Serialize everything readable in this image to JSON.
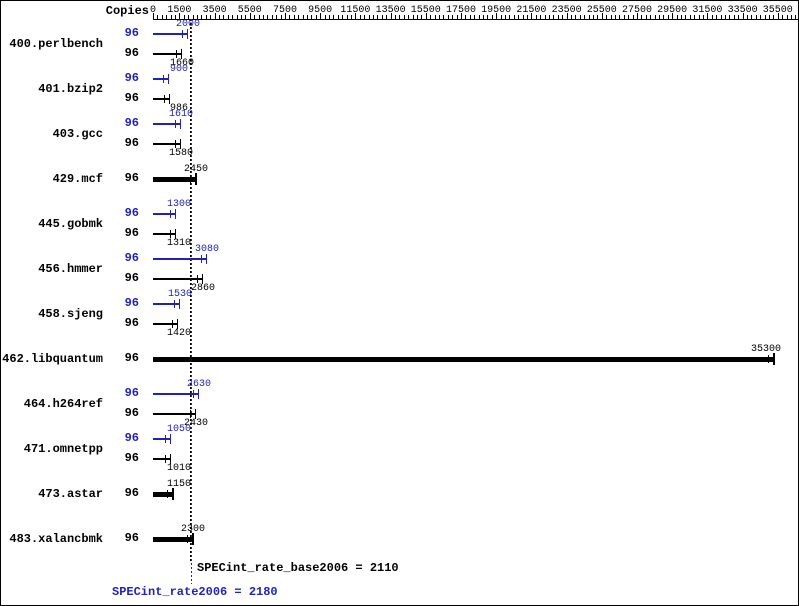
{
  "colors": {
    "peak": "#2222bb",
    "base": "#000000"
  },
  "chart_data": {
    "type": "bar",
    "orientation": "horizontal",
    "copies_label": "Copies",
    "x_axis": {
      "min": 0,
      "max": 36500,
      "minor_tick_step": 250,
      "tick_label_values": [
        0,
        1500,
        3500,
        5500,
        7500,
        9500,
        11500,
        13500,
        15500,
        17500,
        19500,
        21500,
        23500,
        25500,
        27500,
        29500,
        31500,
        33500,
        35500
      ]
    },
    "benchmarks": [
      {
        "name": "400.perlbench",
        "runs": [
          {
            "kind": "peak",
            "copies": "96",
            "value": 2000
          },
          {
            "kind": "base",
            "copies": "96",
            "value": 1660
          }
        ]
      },
      {
        "name": "401.bzip2",
        "runs": [
          {
            "kind": "peak",
            "copies": "96",
            "value": 900
          },
          {
            "kind": "base",
            "copies": "96",
            "value": 986
          }
        ]
      },
      {
        "name": "403.gcc",
        "runs": [
          {
            "kind": "peak",
            "copies": "96",
            "value": 1610
          },
          {
            "kind": "base",
            "copies": "96",
            "value": 1580
          }
        ]
      },
      {
        "name": "429.mcf",
        "runs": [
          {
            "kind": "base",
            "copies": "96",
            "value": 2450,
            "bold": true
          }
        ]
      },
      {
        "name": "445.gobmk",
        "runs": [
          {
            "kind": "peak",
            "copies": "96",
            "value": 1300
          },
          {
            "kind": "base",
            "copies": "96",
            "value": 1310
          }
        ]
      },
      {
        "name": "456.hmmer",
        "runs": [
          {
            "kind": "peak",
            "copies": "96",
            "value": 3080
          },
          {
            "kind": "base",
            "copies": "96",
            "value": 2860
          }
        ]
      },
      {
        "name": "458.sjeng",
        "runs": [
          {
            "kind": "peak",
            "copies": "96",
            "value": 1530
          },
          {
            "kind": "base",
            "copies": "96",
            "value": 1420
          }
        ]
      },
      {
        "name": "462.libquantum",
        "runs": [
          {
            "kind": "base",
            "copies": "96",
            "value": 35300,
            "bold": true
          }
        ]
      },
      {
        "name": "464.h264ref",
        "runs": [
          {
            "kind": "peak",
            "copies": "96",
            "value": 2630
          },
          {
            "kind": "base",
            "copies": "96",
            "value": 2430
          }
        ]
      },
      {
        "name": "471.omnetpp",
        "runs": [
          {
            "kind": "peak",
            "copies": "96",
            "value": 1050
          },
          {
            "kind": "base",
            "copies": "96",
            "value": 1010
          }
        ]
      },
      {
        "name": "473.astar",
        "runs": [
          {
            "kind": "base",
            "copies": "96",
            "value": 1150,
            "bold": true
          }
        ]
      },
      {
        "name": "483.xalancbmk",
        "runs": [
          {
            "kind": "base",
            "copies": "96",
            "value": 2300,
            "bold": true
          }
        ]
      }
    ],
    "summary": {
      "base": {
        "label": "SPECint_rate_base2006 = 2110",
        "value": 2110
      },
      "peak": {
        "label": "SPECint_rate2006 = 2180",
        "value": 2180
      }
    }
  }
}
